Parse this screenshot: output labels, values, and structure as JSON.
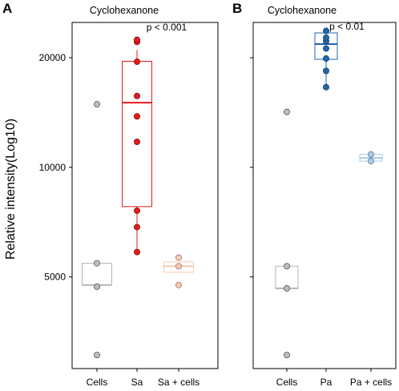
{
  "ylabel": "Relative intensity(Log10)",
  "y_ticks": [
    "5000",
    "10000",
    "20000"
  ],
  "chart_data": [
    {
      "type": "box",
      "panel": "A",
      "title": "Cyclohexanone",
      "annotation": "p < 0.001",
      "ylabel": "Relative intensity(Log10)",
      "y_scale": "log10",
      "ylim": [
        2800,
        25000
      ],
      "y_ticks": [
        5000,
        10000,
        20000
      ],
      "categories": [
        "Cells",
        "Sa",
        "Sa + cells"
      ],
      "colors": [
        "#a8a8a8",
        "#e41a1c",
        "#f9c9b4"
      ],
      "groups": [
        {
          "name": "Cells",
          "q1": 4750,
          "median": 4750,
          "q3": 5450,
          "whisker_low": 4750,
          "whisker_high": 5450,
          "points": [
            3050,
            4700,
            5450,
            14900
          ]
        },
        {
          "name": "Sa",
          "q1": 7800,
          "median": 15050,
          "q3": 19550,
          "whisker_low": 5850,
          "whisker_high": 21000,
          "points": [
            5850,
            6850,
            7600,
            11750,
            13800,
            15700,
            19500,
            22100,
            22400
          ]
        },
        {
          "name": "Sa + cells",
          "q1": 5150,
          "median": 5350,
          "q3": 5500,
          "whisker_low": 5150,
          "whisker_high": 5500,
          "points": [
            4750,
            5350,
            5650
          ]
        }
      ]
    },
    {
      "type": "box",
      "panel": "B",
      "title": "Cyclohexanone",
      "annotation": "p < 0.01",
      "y_scale": "log10",
      "ylim": [
        2800,
        25000
      ],
      "y_ticks": [
        5000,
        10000,
        20000
      ],
      "categories": [
        "Cells",
        "Pa",
        "Pa + cells"
      ],
      "colors": [
        "#a8a8a8",
        "#2166ac",
        "#a6cbe8"
      ],
      "groups": [
        {
          "name": "Cells",
          "q1": 4650,
          "median": 4650,
          "q3": 5350,
          "whisker_low": 4650,
          "whisker_high": 5350,
          "points": [
            3050,
            4650,
            5350,
            14200
          ]
        },
        {
          "name": "Pa",
          "q1": 19800,
          "median": 21800,
          "q3": 23400,
          "whisker_low": 16600,
          "whisker_high": 23900,
          "points": [
            16600,
            18400,
            19900,
            21200,
            22200,
            22700,
            23700
          ]
        },
        {
          "name": "Pa + cells",
          "q1": 10400,
          "median": 10600,
          "q3": 10850,
          "whisker_low": 10400,
          "whisker_high": 10850,
          "points": [
            10400,
            10850
          ]
        }
      ]
    }
  ]
}
